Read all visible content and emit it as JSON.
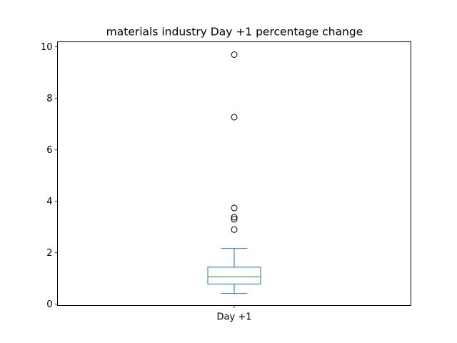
{
  "chart_data": {
    "type": "box",
    "title": "materials industry Day +1 percentage change",
    "xlabel": "",
    "ylabel": "",
    "categories": [
      "Day +1"
    ],
    "ylim": [
      -0.05,
      10.2
    ],
    "yticks": [
      0,
      2,
      4,
      6,
      8,
      10
    ],
    "grid": false,
    "legend": "none",
    "boxes": [
      {
        "category": "Day +1",
        "whisker_low": 0.42,
        "q1": 0.78,
        "median": 1.06,
        "q3": 1.44,
        "whisker_high": 2.17,
        "outliers": [
          2.9,
          3.3,
          3.38,
          3.74,
          7.27,
          9.7
        ]
      }
    ]
  },
  "colors": {
    "box": "#1f77b4",
    "median": "#2ca02c",
    "outlier_edge": "#000000",
    "axes": "#000000"
  }
}
